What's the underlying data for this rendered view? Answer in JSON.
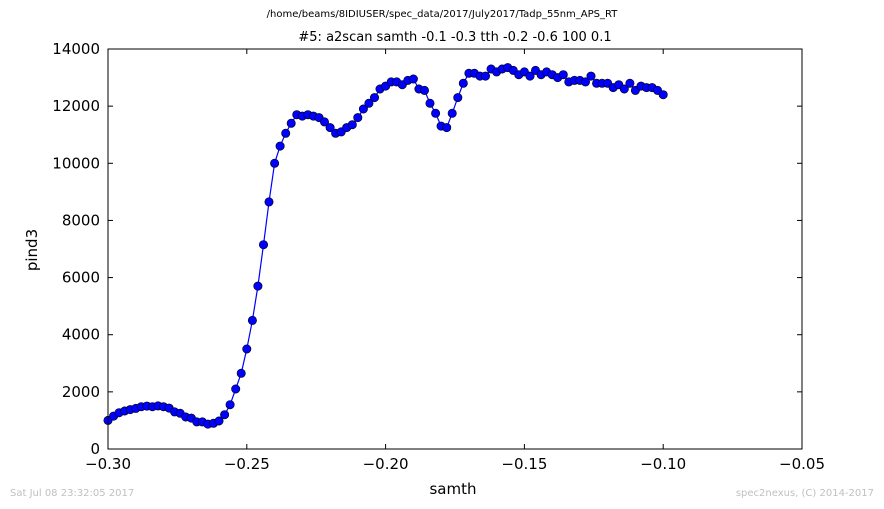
{
  "header": {
    "file_path": "/home/beams/8IDIUSER/spec_data/2017/July2017/Tadp_55nm_APS_RT"
  },
  "footer": {
    "timestamp": "Sat Jul 08 23:32:05 2017",
    "credit": "spec2nexus, (C) 2014-2017"
  },
  "chart_data": {
    "type": "line",
    "title": "#5: a2scan  samth -0.1 -0.3  tth -0.2 -0.6  100 0.1",
    "xlabel": "samth",
    "ylabel": "pind3",
    "xlim": [
      -0.3,
      -0.05
    ],
    "ylim": [
      0,
      14000
    ],
    "x_ticks": [
      -0.3,
      -0.25,
      -0.2,
      -0.15,
      -0.1,
      -0.05
    ],
    "x_tick_labels": [
      "−0.30",
      "−0.25",
      "−0.20",
      "−0.15",
      "−0.10",
      "−0.05"
    ],
    "y_ticks": [
      0,
      2000,
      4000,
      6000,
      8000,
      10000,
      12000,
      14000
    ],
    "y_tick_labels": [
      "0",
      "2000",
      "4000",
      "6000",
      "8000",
      "10000",
      "12000",
      "14000"
    ],
    "grid": false,
    "color": "#0000ff",
    "marker": "circle",
    "series": [
      {
        "x": [
          -0.3,
          -0.298,
          -0.296,
          -0.294,
          -0.292,
          -0.29,
          -0.288,
          -0.286,
          -0.284,
          -0.282,
          -0.28,
          -0.278,
          -0.276,
          -0.274,
          -0.272,
          -0.27,
          -0.268,
          -0.266,
          -0.264,
          -0.262,
          -0.26,
          -0.258,
          -0.256,
          -0.254,
          -0.252,
          -0.25,
          -0.248,
          -0.246,
          -0.244,
          -0.242,
          -0.24,
          -0.238,
          -0.236,
          -0.234,
          -0.232,
          -0.23,
          -0.228,
          -0.226,
          -0.224,
          -0.222,
          -0.22,
          -0.218,
          -0.216,
          -0.214,
          -0.212,
          -0.21,
          -0.208,
          -0.206,
          -0.204,
          -0.202,
          -0.2,
          -0.198,
          -0.196,
          -0.194,
          -0.192,
          -0.19,
          -0.188,
          -0.186,
          -0.184,
          -0.182,
          -0.18,
          -0.178,
          -0.176,
          -0.174,
          -0.172,
          -0.17,
          -0.168,
          -0.166,
          -0.164,
          -0.162,
          -0.16,
          -0.158,
          -0.156,
          -0.154,
          -0.152,
          -0.15,
          -0.148,
          -0.146,
          -0.144,
          -0.142,
          -0.14,
          -0.138,
          -0.136,
          -0.134,
          -0.132,
          -0.13,
          -0.128,
          -0.126,
          -0.124,
          -0.122,
          -0.12,
          -0.118,
          -0.116,
          -0.114,
          -0.112,
          -0.11,
          -0.108,
          -0.106,
          -0.104,
          -0.102,
          -0.1
        ],
        "y": [
          1000,
          1150,
          1270,
          1330,
          1380,
          1420,
          1480,
          1500,
          1480,
          1510,
          1480,
          1430,
          1300,
          1250,
          1120,
          1080,
          950,
          950,
          870,
          900,
          980,
          1200,
          1550,
          2100,
          2650,
          3500,
          4500,
          5700,
          7150,
          8650,
          10000,
          10600,
          11050,
          11400,
          11700,
          11650,
          11700,
          11650,
          11600,
          11450,
          11250,
          11050,
          11100,
          11250,
          11350,
          11600,
          11900,
          12100,
          12300,
          12600,
          12700,
          12850,
          12850,
          12750,
          12900,
          12950,
          12600,
          12550,
          12100,
          11750,
          11300,
          11250,
          11750,
          12300,
          12800,
          13150,
          13150,
          13050,
          13050,
          13300,
          13200,
          13300,
          13350,
          13250,
          13100,
          13200,
          13050,
          13250,
          13100,
          13200,
          13100,
          13000,
          13100,
          12850,
          12900,
          12900,
          12850,
          13050,
          12800,
          12800,
          12800,
          12650,
          12750,
          12600,
          12800,
          12550,
          12700,
          12650,
          12650,
          12550,
          12400
        ]
      }
    ]
  }
}
